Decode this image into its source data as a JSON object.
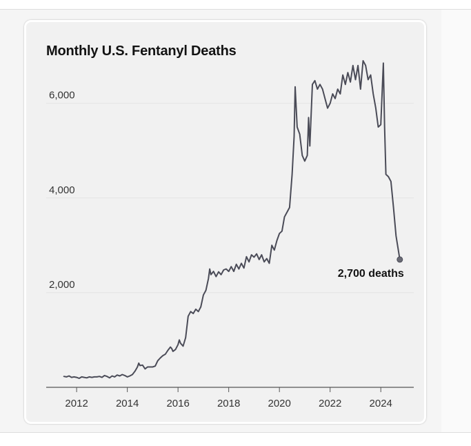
{
  "chart_data": {
    "type": "line",
    "title": "Monthly U.S. Fentanyl Deaths",
    "xlabel": "",
    "ylabel": "",
    "xlim": [
      2010.8,
      2025.3
    ],
    "ylim": [
      0,
      6900
    ],
    "grid": true,
    "legend": "none",
    "colors": {
      "line": "#4a4b57",
      "grid": "#e4e4e4",
      "axis": "#555555"
    },
    "yticks": [
      {
        "value": 2000,
        "label": "2,000"
      },
      {
        "value": 4000,
        "label": "4,000"
      },
      {
        "value": 6000,
        "label": "6,000"
      }
    ],
    "xticks": [
      {
        "value": 2012,
        "label": "2012"
      },
      {
        "value": 2014,
        "label": "2014"
      },
      {
        "value": 2016,
        "label": "2016"
      },
      {
        "value": 2018,
        "label": "2018"
      },
      {
        "value": 2020,
        "label": "2020"
      },
      {
        "value": 2022,
        "label": "2022"
      },
      {
        "value": 2024,
        "label": "2024"
      }
    ],
    "series": [
      {
        "points": [
          [
            2011.5,
            230
          ],
          [
            2011.6,
            220
          ],
          [
            2011.7,
            240
          ],
          [
            2011.8,
            210
          ],
          [
            2011.9,
            220
          ],
          [
            2012.0,
            210
          ],
          [
            2012.1,
            190
          ],
          [
            2012.2,
            220
          ],
          [
            2012.3,
            210
          ],
          [
            2012.4,
            200
          ],
          [
            2012.5,
            220
          ],
          [
            2012.6,
            210
          ],
          [
            2012.7,
            220
          ],
          [
            2012.8,
            220
          ],
          [
            2012.9,
            230
          ],
          [
            2013.0,
            210
          ],
          [
            2013.1,
            250
          ],
          [
            2013.2,
            230
          ],
          [
            2013.3,
            200
          ],
          [
            2013.4,
            240
          ],
          [
            2013.5,
            220
          ],
          [
            2013.6,
            260
          ],
          [
            2013.7,
            240
          ],
          [
            2013.8,
            270
          ],
          [
            2013.9,
            250
          ],
          [
            2014.0,
            220
          ],
          [
            2014.1,
            240
          ],
          [
            2014.2,
            270
          ],
          [
            2014.3,
            340
          ],
          [
            2014.4,
            430
          ],
          [
            2014.45,
            510
          ],
          [
            2014.5,
            460
          ],
          [
            2014.6,
            470
          ],
          [
            2014.7,
            390
          ],
          [
            2014.8,
            430
          ],
          [
            2014.9,
            430
          ],
          [
            2015.0,
            430
          ],
          [
            2015.1,
            450
          ],
          [
            2015.2,
            560
          ],
          [
            2015.3,
            620
          ],
          [
            2015.4,
            670
          ],
          [
            2015.5,
            700
          ],
          [
            2015.6,
            780
          ],
          [
            2015.7,
            850
          ],
          [
            2015.75,
            820
          ],
          [
            2015.8,
            760
          ],
          [
            2015.9,
            800
          ],
          [
            2016.0,
            900
          ],
          [
            2016.05,
            1000
          ],
          [
            2016.1,
            930
          ],
          [
            2016.2,
            870
          ],
          [
            2016.3,
            1050
          ],
          [
            2016.4,
            1500
          ],
          [
            2016.5,
            1600
          ],
          [
            2016.6,
            1560
          ],
          [
            2016.7,
            1650
          ],
          [
            2016.8,
            1600
          ],
          [
            2016.9,
            1700
          ],
          [
            2017.0,
            1950
          ],
          [
            2017.1,
            2050
          ],
          [
            2017.2,
            2300
          ],
          [
            2017.25,
            2500
          ],
          [
            2017.3,
            2380
          ],
          [
            2017.4,
            2450
          ],
          [
            2017.5,
            2340
          ],
          [
            2017.6,
            2440
          ],
          [
            2017.7,
            2380
          ],
          [
            2017.8,
            2480
          ],
          [
            2017.9,
            2500
          ],
          [
            2018.0,
            2450
          ],
          [
            2018.1,
            2550
          ],
          [
            2018.2,
            2450
          ],
          [
            2018.3,
            2600
          ],
          [
            2018.4,
            2500
          ],
          [
            2018.5,
            2620
          ],
          [
            2018.6,
            2520
          ],
          [
            2018.7,
            2760
          ],
          [
            2018.8,
            2650
          ],
          [
            2018.9,
            2800
          ],
          [
            2019.0,
            2750
          ],
          [
            2019.1,
            2820
          ],
          [
            2019.2,
            2700
          ],
          [
            2019.3,
            2800
          ],
          [
            2019.4,
            2650
          ],
          [
            2019.5,
            2720
          ],
          [
            2019.6,
            2620
          ],
          [
            2019.7,
            3000
          ],
          [
            2019.8,
            2900
          ],
          [
            2019.9,
            3100
          ],
          [
            2020.0,
            3250
          ],
          [
            2020.1,
            3300
          ],
          [
            2020.2,
            3600
          ],
          [
            2020.3,
            3700
          ],
          [
            2020.4,
            3800
          ],
          [
            2020.5,
            4500
          ],
          [
            2020.58,
            5300
          ],
          [
            2020.62,
            6350
          ],
          [
            2020.7,
            5500
          ],
          [
            2020.8,
            5350
          ],
          [
            2020.9,
            4900
          ],
          [
            2021.0,
            4780
          ],
          [
            2021.1,
            4900
          ],
          [
            2021.15,
            5700
          ],
          [
            2021.2,
            5100
          ],
          [
            2021.3,
            6400
          ],
          [
            2021.4,
            6480
          ],
          [
            2021.5,
            6300
          ],
          [
            2021.6,
            6400
          ],
          [
            2021.7,
            6300
          ],
          [
            2021.8,
            6100
          ],
          [
            2021.9,
            5900
          ],
          [
            2022.0,
            6000
          ],
          [
            2022.1,
            6200
          ],
          [
            2022.2,
            6100
          ],
          [
            2022.3,
            6300
          ],
          [
            2022.4,
            6200
          ],
          [
            2022.5,
            6600
          ],
          [
            2022.6,
            6400
          ],
          [
            2022.7,
            6650
          ],
          [
            2022.8,
            6450
          ],
          [
            2022.9,
            6800
          ],
          [
            2023.0,
            6500
          ],
          [
            2023.1,
            6800
          ],
          [
            2023.2,
            6300
          ],
          [
            2023.3,
            6900
          ],
          [
            2023.4,
            6800
          ],
          [
            2023.5,
            6500
          ],
          [
            2023.6,
            6600
          ],
          [
            2023.7,
            6200
          ],
          [
            2023.8,
            5900
          ],
          [
            2023.9,
            5500
          ],
          [
            2024.0,
            5550
          ],
          [
            2024.1,
            6850
          ],
          [
            2024.15,
            5500
          ],
          [
            2024.2,
            4500
          ],
          [
            2024.3,
            4450
          ],
          [
            2024.4,
            4350
          ],
          [
            2024.5,
            3800
          ],
          [
            2024.6,
            3200
          ],
          [
            2024.75,
            2700
          ]
        ]
      }
    ],
    "annotation": {
      "label": "2,700 deaths",
      "x": 2024.75,
      "y": 2700
    }
  }
}
